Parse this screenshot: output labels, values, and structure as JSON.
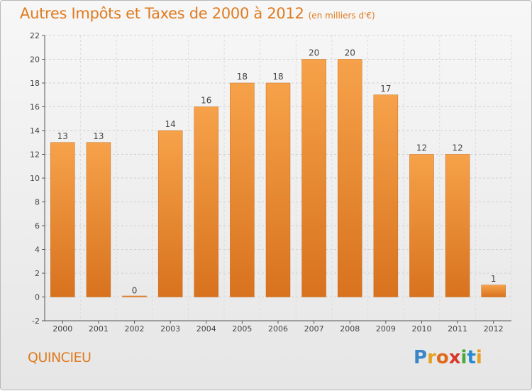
{
  "title": "Autres Impôts et Taxes de 2000 à 2012",
  "subtitle": "(en milliers d'€)",
  "commune": "QUINCIEU",
  "logo": {
    "letters": [
      "P",
      "r",
      "o",
      "x",
      "i",
      "t",
      "i"
    ],
    "colors": [
      "#3a86c8",
      "#e8a020",
      "#e06a1c",
      "#d83a2a",
      "#4aa83a",
      "#2a8ad0",
      "#e8a020"
    ]
  },
  "colors": {
    "bar_top": "#f6a24a",
    "bar_bottom": "#d8721e",
    "title": "#e07b20"
  },
  "chart_data": {
    "type": "bar",
    "title": "Autres Impôts et Taxes de 2000 à 2012",
    "xlabel": "",
    "ylabel": "",
    "categories": [
      "2000",
      "2001",
      "2002",
      "2003",
      "2004",
      "2005",
      "2006",
      "2007",
      "2008",
      "2009",
      "2010",
      "2011",
      "2012"
    ],
    "values": [
      13,
      13,
      0,
      14,
      16,
      18,
      18,
      20,
      20,
      17,
      12,
      12,
      1
    ],
    "data_labels": [
      "13",
      "13",
      "0",
      "14",
      "16",
      "18",
      "18",
      "20",
      "20",
      "17",
      "12",
      "12",
      "1"
    ],
    "yticks": [
      -2,
      0,
      2,
      4,
      6,
      8,
      10,
      12,
      14,
      16,
      18,
      20,
      22
    ],
    "ylim": [
      -2,
      22
    ],
    "grid": true
  }
}
